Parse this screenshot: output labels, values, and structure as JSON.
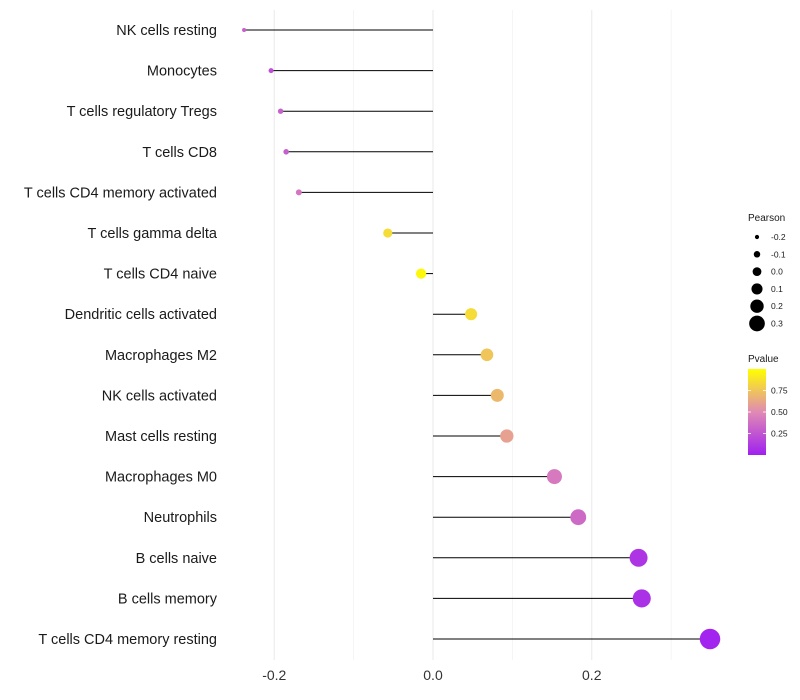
{
  "chart_data": {
    "type": "lollipop",
    "orientation": "horizontal",
    "categories": [
      "NK cells resting",
      "Monocytes",
      "T cells regulatory  Tregs",
      "T cells CD8",
      "T cells CD4 memory activated",
      "T cells gamma delta",
      "T cells CD4 naive",
      "Dendritic cells activated",
      "Macrophages M2",
      "NK cells activated",
      "Mast cells resting",
      "Macrophages M0",
      "Neutrophils",
      "B cells naive",
      "B cells memory",
      "T cells CD4 memory resting"
    ],
    "pearson": [
      -0.238,
      -0.204,
      -0.192,
      -0.185,
      -0.169,
      -0.057,
      -0.015,
      0.048,
      0.068,
      0.081,
      0.093,
      0.153,
      0.183,
      0.259,
      0.263,
      0.349
    ],
    "pvalue": [
      0.3,
      0.22,
      0.3,
      0.3,
      0.4,
      0.85,
      0.97,
      0.85,
      0.75,
      0.7,
      0.6,
      0.42,
      0.35,
      0.1,
      0.08,
      0.02
    ],
    "xlim": [
      -0.29,
      0.46
    ],
    "x_ticks": [
      -0.2,
      0.0,
      0.2
    ],
    "x_tick_labels": [
      "-0.2",
      "0.0",
      "0.2"
    ],
    "minor_gridlines": [
      -0.1,
      0.1,
      0.3
    ],
    "xlabel": "",
    "ylabel": "",
    "legend_size": {
      "title": "Pearson",
      "values": [
        -0.2,
        -0.1,
        0.0,
        0.1,
        0.2,
        0.3
      ],
      "labels": [
        "-0.2",
        "-0.1",
        "0.0",
        "0.1",
        "0.2",
        "0.3"
      ]
    },
    "legend_color": {
      "title": "Pvalue",
      "ticks": [
        0.75,
        0.5,
        0.25
      ],
      "tick_labels": [
        "0.75",
        "0.50",
        "0.25"
      ],
      "range": [
        0.0,
        1.0
      ],
      "low_color": "#a020f0",
      "mid_color": "#e08ab4",
      "high_color": "#ffff00"
    }
  }
}
